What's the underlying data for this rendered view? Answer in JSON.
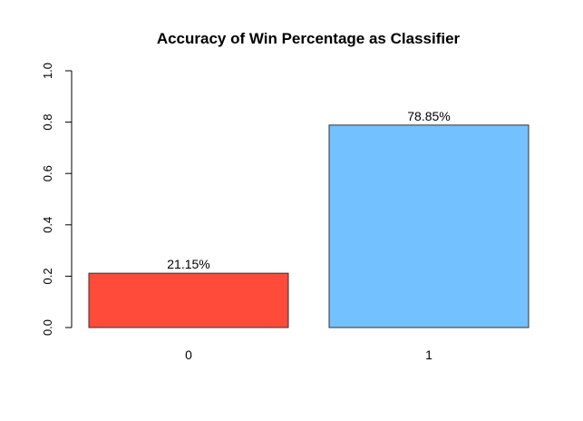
{
  "chart_data": {
    "type": "bar",
    "title": "Accuracy of Win Percentage as Classifier",
    "xlabel": "",
    "ylabel": "",
    "categories": [
      "0",
      "1"
    ],
    "values": [
      0.2115,
      0.7885
    ],
    "data_labels": [
      "21.15%",
      "78.85%"
    ],
    "colors": [
      "#ff4b3a",
      "#74c1ff"
    ],
    "ylim": [
      0,
      1
    ],
    "yticks": [
      0,
      0.2,
      0.4,
      0.6,
      0.8,
      1
    ],
    "ytick_labels": [
      "0.0",
      "0.2",
      "0.4",
      "0.6",
      "0.8",
      "1.0"
    ],
    "grid": false,
    "legend": "none"
  }
}
